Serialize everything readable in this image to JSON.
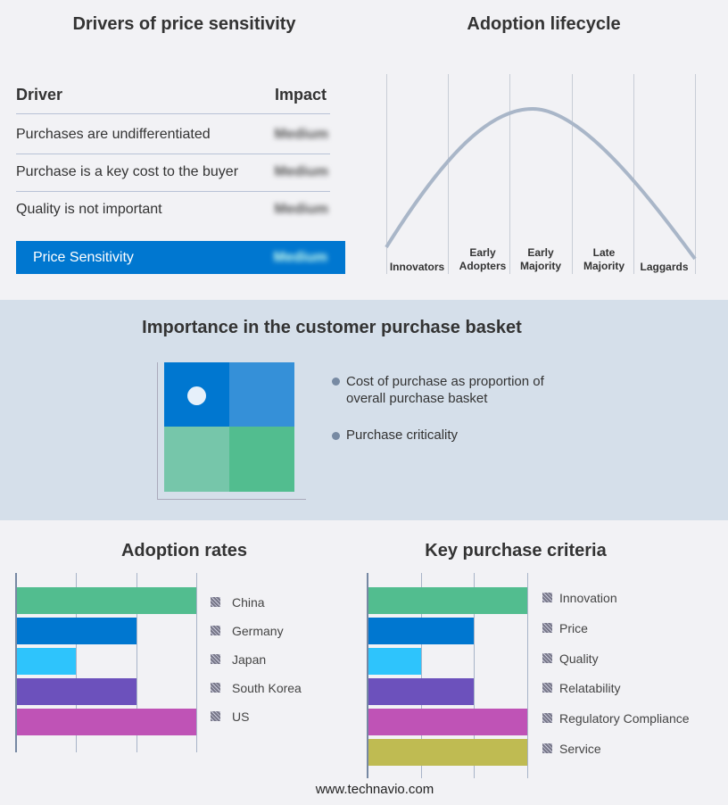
{
  "drivers": {
    "title": "Drivers of price sensitivity",
    "col_driver": "Driver",
    "col_impact": "Impact",
    "rows": [
      {
        "driver": "Purchases are undifferentiated",
        "impact": "Medium"
      },
      {
        "driver": "Purchase is a key cost to the buyer",
        "impact": "Medium"
      },
      {
        "driver": "Quality is not important",
        "impact": "Medium"
      }
    ],
    "summary": {
      "label": "Price Sensitivity",
      "impact": "Medium"
    }
  },
  "lifecycle": {
    "title": "Adoption lifecycle",
    "stages": [
      "Innovators",
      "Early Adopters",
      "Early Majority",
      "Late Majority",
      "Laggards"
    ]
  },
  "basket": {
    "title": "Importance in the customer purchase basket",
    "legend": [
      "Cost of purchase as proportion of overall purchase basket",
      "Purchase criticality"
    ]
  },
  "chart_data": [
    {
      "type": "bar",
      "title": "Adoption rates",
      "orientation": "horizontal",
      "categories": [
        "China",
        "Germany",
        "Japan",
        "South Korea",
        "US"
      ],
      "values": [
        3,
        2,
        1,
        2,
        3
      ],
      "xlim": [
        0,
        3
      ],
      "colors": [
        "#52bd8f",
        "#0077d0",
        "#2ec4fc",
        "#6c51bc",
        "#bf53b6"
      ]
    },
    {
      "type": "bar",
      "title": "Key purchase criteria",
      "orientation": "horizontal",
      "categories": [
        "Innovation",
        "Price",
        "Quality",
        "Relatability",
        "Regulatory Compliance",
        "Service"
      ],
      "values": [
        3,
        2,
        1,
        2,
        3,
        3
      ],
      "xlim": [
        0,
        3
      ],
      "colors": [
        "#52bd8f",
        "#0077d0",
        "#2ec4fc",
        "#6c51bc",
        "#bf53b6",
        "#bfbb52"
      ]
    }
  ],
  "footer": "www.technavio.com"
}
